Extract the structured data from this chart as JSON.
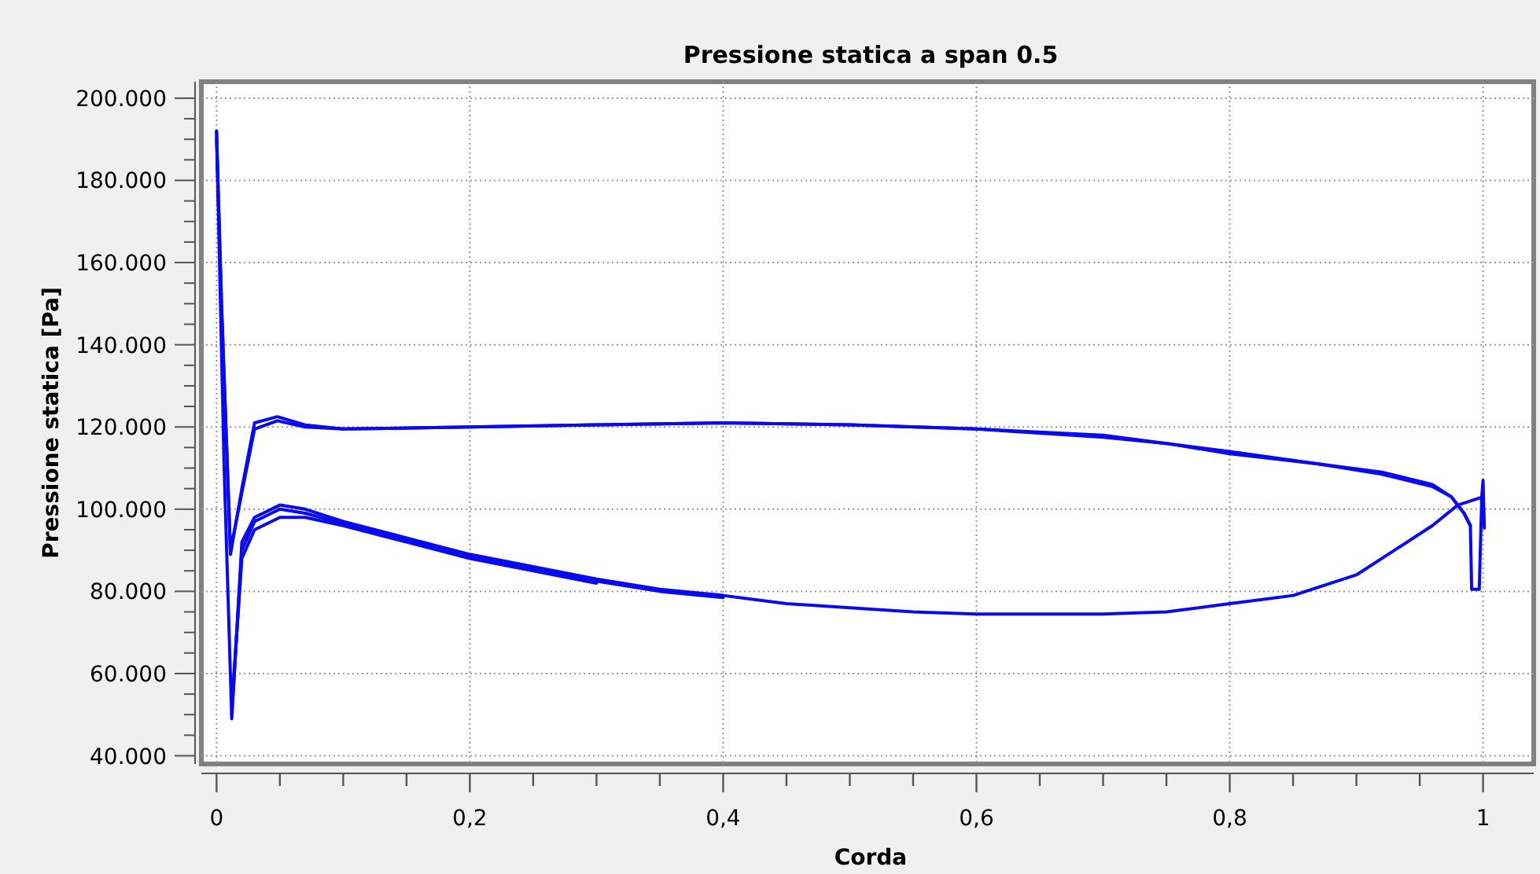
{
  "chart_data": {
    "type": "line",
    "title": "Pressione statica a span 0.5",
    "xlabel": "Corda",
    "ylabel": "Pressione statica [Pa]",
    "xlim": [
      -0.012,
      1.04
    ],
    "ylim": [
      38000,
      204000
    ],
    "xticks": [
      {
        "value": 0,
        "label": "0"
      },
      {
        "value": 0.05,
        "label": null
      },
      {
        "value": 0.1,
        "label": null
      },
      {
        "value": 0.15,
        "label": null
      },
      {
        "value": 0.2,
        "label": "0,2"
      },
      {
        "value": 0.25,
        "label": null
      },
      {
        "value": 0.3,
        "label": null
      },
      {
        "value": 0.35,
        "label": null
      },
      {
        "value": 0.4,
        "label": "0,4"
      },
      {
        "value": 0.45,
        "label": null
      },
      {
        "value": 0.5,
        "label": null
      },
      {
        "value": 0.55,
        "label": null
      },
      {
        "value": 0.6,
        "label": "0,6"
      },
      {
        "value": 0.65,
        "label": null
      },
      {
        "value": 0.7,
        "label": null
      },
      {
        "value": 0.75,
        "label": null
      },
      {
        "value": 0.8,
        "label": "0,8"
      },
      {
        "value": 0.85,
        "label": null
      },
      {
        "value": 0.9,
        "label": null
      },
      {
        "value": 0.95,
        "label": null
      },
      {
        "value": 1,
        "label": "1"
      }
    ],
    "yticks": [
      {
        "value": 40000,
        "label": "40.000"
      },
      {
        "value": 45000,
        "label": null
      },
      {
        "value": 50000,
        "label": null
      },
      {
        "value": 55000,
        "label": null
      },
      {
        "value": 60000,
        "label": "60.000"
      },
      {
        "value": 65000,
        "label": null
      },
      {
        "value": 70000,
        "label": null
      },
      {
        "value": 75000,
        "label": null
      },
      {
        "value": 80000,
        "label": "80.000"
      },
      {
        "value": 85000,
        "label": null
      },
      {
        "value": 90000,
        "label": null
      },
      {
        "value": 95000,
        "label": null
      },
      {
        "value": 100000,
        "label": "100.000"
      },
      {
        "value": 105000,
        "label": null
      },
      {
        "value": 110000,
        "label": null
      },
      {
        "value": 115000,
        "label": null
      },
      {
        "value": 120000,
        "label": "120.000"
      },
      {
        "value": 125000,
        "label": null
      },
      {
        "value": 130000,
        "label": null
      },
      {
        "value": 135000,
        "label": null
      },
      {
        "value": 140000,
        "label": "140.000"
      },
      {
        "value": 145000,
        "label": null
      },
      {
        "value": 150000,
        "label": null
      },
      {
        "value": 155000,
        "label": null
      },
      {
        "value": 160000,
        "label": "160.000"
      },
      {
        "value": 165000,
        "label": null
      },
      {
        "value": 170000,
        "label": null
      },
      {
        "value": 175000,
        "label": null
      },
      {
        "value": 180000,
        "label": "180.000"
      },
      {
        "value": 185000,
        "label": null
      },
      {
        "value": 190000,
        "label": null
      },
      {
        "value": 195000,
        "label": null
      },
      {
        "value": 200000,
        "label": "200.000"
      }
    ],
    "grid": true,
    "marker": "none",
    "line_style": "solid",
    "series": [
      {
        "color": "#0a0aee",
        "x": [
          0,
          0.004,
          0.011,
          0.02,
          0.03,
          0.048,
          0.07,
          0.1,
          0.2,
          0.3,
          0.4,
          0.5,
          0.6,
          0.7,
          0.75,
          0.8,
          0.87,
          0.92,
          0.96,
          0.975,
          0.985,
          0.99,
          0.991,
          0.997,
          0.999,
          1.0,
          1.001
        ],
        "values": [
          192000,
          150000,
          89000,
          105000,
          121000,
          122500,
          120500,
          119500,
          120000,
          120500,
          121000,
          120500,
          119500,
          118000,
          116000,
          114000,
          111000,
          109000,
          106000,
          103000,
          99000,
          96000,
          80500,
          80500,
          103000,
          107000,
          95400
        ]
      },
      {
        "color": "#0a0aee",
        "x": [
          0,
          0.004,
          0.011,
          0.02,
          0.03,
          0.048,
          0.07,
          0.1,
          0.2,
          0.3,
          0.4,
          0.5,
          0.6,
          0.7,
          0.75,
          0.8,
          0.87,
          0.92,
          0.96,
          0.975,
          0.985,
          0.99
        ],
        "values": [
          190000,
          148000,
          90000,
          104000,
          119500,
          121500,
          120000,
          119500,
          120000,
          120500,
          121000,
          120500,
          119500,
          117500,
          116000,
          113500,
          111000,
          108500,
          105500,
          103000,
          99000,
          96000
        ]
      },
      {
        "color": "#0a0aee",
        "x": [
          0,
          0.006,
          0.012,
          0.02,
          0.03,
          0.05,
          0.07,
          0.1,
          0.15,
          0.2,
          0.25,
          0.3,
          0.35,
          0.4,
          0.45,
          0.5,
          0.55,
          0.6,
          0.65,
          0.7,
          0.75,
          0.8,
          0.85,
          0.9,
          0.93,
          0.96,
          0.98,
          1.0
        ],
        "values": [
          192000,
          110000,
          49000,
          92000,
          98000,
          101000,
          100000,
          97000,
          93000,
          89000,
          86000,
          83000,
          80500,
          79000,
          77000,
          76000,
          75000,
          74500,
          74500,
          74500,
          75000,
          77000,
          79000,
          84000,
          90000,
          96000,
          101000,
          103000
        ]
      },
      {
        "color": "#0a0aee",
        "x": [
          0.012,
          0.02,
          0.03,
          0.05,
          0.07,
          0.1,
          0.15,
          0.2,
          0.25,
          0.3,
          0.35,
          0.4
        ],
        "values": [
          50000,
          90000,
          97000,
          100000,
          99000,
          96500,
          92500,
          88500,
          85500,
          82500,
          80000,
          78500
        ]
      },
      {
        "color": "#0a0aee",
        "x": [
          0.012,
          0.02,
          0.03,
          0.05,
          0.07,
          0.1,
          0.15,
          0.2,
          0.25,
          0.3
        ],
        "values": [
          52000,
          88000,
          95000,
          98000,
          98000,
          96000,
          92000,
          88000,
          85000,
          82000
        ]
      }
    ]
  }
}
